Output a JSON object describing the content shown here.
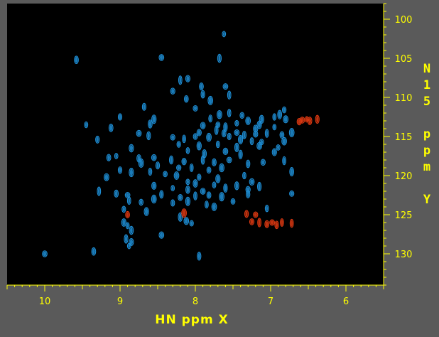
{
  "chart_data": {
    "type": "scatter",
    "title": "",
    "xlabel": "HN ppm X",
    "ylabel": "N15 ppm Y",
    "xlim": [
      10.5,
      5.5
    ],
    "ylim": [
      98,
      134
    ],
    "x_reversed": true,
    "y_reversed": true,
    "x_ticks": [
      10,
      9,
      8,
      7,
      6
    ],
    "y_ticks": [
      100,
      105,
      110,
      115,
      120,
      125,
      130
    ],
    "grid": false,
    "colors": {
      "background": "#5a5a5a",
      "plot_area": "#000000",
      "axis_text": "#ffff00",
      "positive_peaks": "#1e90d8",
      "negative_peaks": "#e23a12"
    },
    "series": [
      {
        "color_role": "positive",
        "points": [
          [
            7.62,
            101.9
          ],
          [
            9.58,
            105.2
          ],
          [
            8.45,
            104.9
          ],
          [
            7.68,
            105.0
          ],
          [
            8.1,
            107.6
          ],
          [
            8.2,
            107.8
          ],
          [
            7.92,
            108.6
          ],
          [
            7.6,
            108.6
          ],
          [
            7.9,
            109.6
          ],
          [
            8.3,
            109.2
          ],
          [
            7.55,
            109.7
          ],
          [
            8.12,
            110.2
          ],
          [
            7.8,
            110.4
          ],
          [
            8.68,
            111.2
          ],
          [
            8.0,
            111.4
          ],
          [
            7.55,
            112.0
          ],
          [
            7.38,
            112.3
          ],
          [
            7.68,
            112.2
          ],
          [
            9.0,
            112.5
          ],
          [
            8.55,
            112.8
          ],
          [
            7.8,
            112.7
          ],
          [
            7.7,
            113.5
          ],
          [
            7.3,
            113.0
          ],
          [
            6.82,
            111.6
          ],
          [
            7.12,
            112.8
          ],
          [
            6.95,
            112.5
          ],
          [
            6.88,
            112.2
          ],
          [
            6.8,
            112.8
          ],
          [
            7.45,
            113.3
          ],
          [
            7.15,
            113.5
          ],
          [
            9.45,
            113.5
          ],
          [
            8.6,
            113.4
          ],
          [
            7.9,
            113.6
          ],
          [
            7.6,
            113.8
          ],
          [
            7.2,
            114.0
          ],
          [
            6.95,
            113.8
          ],
          [
            9.12,
            113.9
          ],
          [
            8.75,
            114.6
          ],
          [
            8.62,
            114.9
          ],
          [
            7.95,
            114.5
          ],
          [
            7.72,
            114.2
          ],
          [
            7.62,
            114.6
          ],
          [
            7.45,
            114.5
          ],
          [
            7.35,
            114.8
          ],
          [
            7.2,
            114.7
          ],
          [
            7.05,
            114.6
          ],
          [
            6.85,
            114.8
          ],
          [
            6.72,
            114.5
          ],
          [
            9.3,
            115.4
          ],
          [
            8.3,
            115.1
          ],
          [
            8.15,
            115.3
          ],
          [
            8.0,
            115.0
          ],
          [
            7.82,
            115.1
          ],
          [
            7.55,
            115.0
          ],
          [
            7.4,
            115.4
          ],
          [
            7.25,
            115.6
          ],
          [
            7.12,
            115.7
          ],
          [
            6.82,
            115.6
          ],
          [
            8.22,
            116.0
          ],
          [
            7.95,
            116.2
          ],
          [
            7.7,
            116.0
          ],
          [
            7.45,
            116.4
          ],
          [
            7.15,
            116.2
          ],
          [
            6.9,
            116.4
          ],
          [
            8.85,
            116.5
          ],
          [
            8.1,
            116.8
          ],
          [
            7.88,
            117.2
          ],
          [
            7.6,
            116.9
          ],
          [
            7.4,
            117.3
          ],
          [
            6.95,
            117.0
          ],
          [
            9.05,
            117.5
          ],
          [
            8.75,
            117.8
          ],
          [
            8.55,
            117.7
          ],
          [
            8.32,
            118.0
          ],
          [
            8.15,
            118.2
          ],
          [
            7.9,
            118.0
          ],
          [
            7.75,
            118.3
          ],
          [
            7.55,
            118.0
          ],
          [
            7.3,
            118.5
          ],
          [
            7.1,
            118.3
          ],
          [
            6.82,
            118.1
          ],
          [
            9.15,
            117.7
          ],
          [
            8.72,
            118.4
          ],
          [
            8.5,
            118.7
          ],
          [
            8.22,
            119.0
          ],
          [
            8.05,
            119.0
          ],
          [
            7.82,
            119.3
          ],
          [
            7.65,
            119.0
          ],
          [
            9.0,
            119.3
          ],
          [
            8.85,
            119.6
          ],
          [
            8.6,
            119.5
          ],
          [
            8.4,
            119.8
          ],
          [
            8.25,
            120.0
          ],
          [
            7.95,
            120.2
          ],
          [
            7.7,
            120.4
          ],
          [
            7.35,
            120.0
          ],
          [
            6.72,
            119.5
          ],
          [
            9.18,
            120.2
          ],
          [
            8.1,
            120.8
          ],
          [
            8.0,
            121.0
          ],
          [
            7.75,
            121.2
          ],
          [
            7.45,
            121.3
          ],
          [
            7.25,
            120.8
          ],
          [
            7.15,
            121.4
          ],
          [
            8.55,
            121.3
          ],
          [
            8.3,
            121.6
          ],
          [
            8.1,
            121.8
          ],
          [
            7.9,
            122.0
          ],
          [
            7.6,
            121.6
          ],
          [
            7.3,
            121.8
          ],
          [
            9.28,
            122.0
          ],
          [
            9.05,
            122.3
          ],
          [
            8.9,
            122.5
          ],
          [
            8.45,
            122.4
          ],
          [
            8.2,
            122.8
          ],
          [
            8.0,
            122.6
          ],
          [
            7.82,
            122.5
          ],
          [
            7.65,
            122.7
          ],
          [
            7.3,
            122.4
          ],
          [
            6.72,
            122.3
          ],
          [
            8.88,
            123.2
          ],
          [
            8.72,
            123.4
          ],
          [
            8.55,
            123.0
          ],
          [
            8.3,
            123.5
          ],
          [
            8.1,
            123.3
          ],
          [
            7.85,
            123.7
          ],
          [
            7.5,
            123.3
          ],
          [
            7.75,
            124.0
          ],
          [
            8.95,
            124.3
          ],
          [
            8.65,
            124.6
          ],
          [
            7.05,
            124.2
          ],
          [
            8.2,
            125.3
          ],
          [
            8.12,
            125.8
          ],
          [
            8.05,
            126.1
          ],
          [
            8.95,
            126.0
          ],
          [
            8.9,
            126.4
          ],
          [
            8.85,
            127.0
          ],
          [
            8.45,
            127.6
          ],
          [
            8.92,
            128.1
          ],
          [
            8.85,
            128.5
          ],
          [
            8.88,
            129.0
          ],
          [
            9.35,
            129.7
          ],
          [
            10.0,
            130.0
          ],
          [
            7.95,
            130.3
          ]
        ]
      },
      {
        "color_role": "negative",
        "points": [
          [
            6.52,
            112.8
          ],
          [
            6.48,
            113.0
          ],
          [
            6.58,
            112.9
          ],
          [
            6.38,
            112.8
          ],
          [
            6.62,
            113.1
          ],
          [
            7.15,
            126.0
          ],
          [
            7.05,
            126.2
          ],
          [
            6.98,
            126.0
          ],
          [
            6.92,
            126.3
          ],
          [
            7.25,
            125.9
          ],
          [
            6.72,
            126.1
          ],
          [
            8.9,
            125.0
          ],
          [
            8.15,
            124.8
          ],
          [
            7.32,
            124.9
          ],
          [
            7.2,
            125.0
          ],
          [
            6.85,
            126.0
          ]
        ]
      }
    ]
  }
}
